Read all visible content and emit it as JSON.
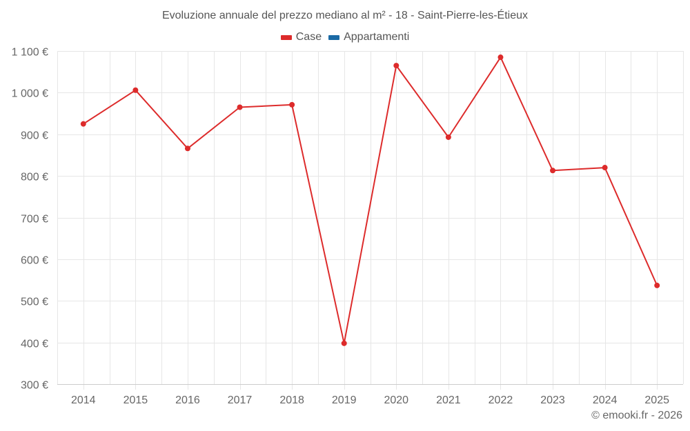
{
  "title": "Evoluzione annuale del prezzo mediano al m² - 18 - Saint-Pierre-les-Étieux",
  "legend": [
    {
      "label": "Case",
      "color": "#dd2b2b"
    },
    {
      "label": "Appartamenti",
      "color": "#1b6aa5"
    }
  ],
  "credits": "© emooki.fr - 2026",
  "colors": {
    "series_case": "#dd2b2b",
    "series_appartamenti": "#1b6aa5",
    "grid": "#e6e6e6",
    "axis": "#cccccc"
  },
  "chart_data": {
    "type": "line",
    "title": "Evoluzione annuale del prezzo mediano al m² - 18 - Saint-Pierre-les-Étieux",
    "xlabel": "",
    "ylabel": "",
    "categories": [
      "2014",
      "2015",
      "2016",
      "2017",
      "2018",
      "2019",
      "2020",
      "2021",
      "2022",
      "2023",
      "2024",
      "2025"
    ],
    "series": [
      {
        "name": "Case",
        "color": "#dd2b2b",
        "values": [
          925,
          1006,
          866,
          965,
          971,
          398,
          1065,
          893,
          1085,
          813,
          820,
          537
        ]
      },
      {
        "name": "Appartamenti",
        "color": "#1b6aa5",
        "values": []
      }
    ],
    "ylim": [
      300,
      1100
    ],
    "yticks": [
      300,
      400,
      500,
      600,
      700,
      800,
      900,
      1000,
      1100
    ],
    "ytick_labels": [
      "300 €",
      "400 €",
      "500 €",
      "600 €",
      "700 €",
      "800 €",
      "900 €",
      "1 000 €",
      "1 100 €"
    ],
    "grid": true,
    "legend_position": "top-center"
  }
}
